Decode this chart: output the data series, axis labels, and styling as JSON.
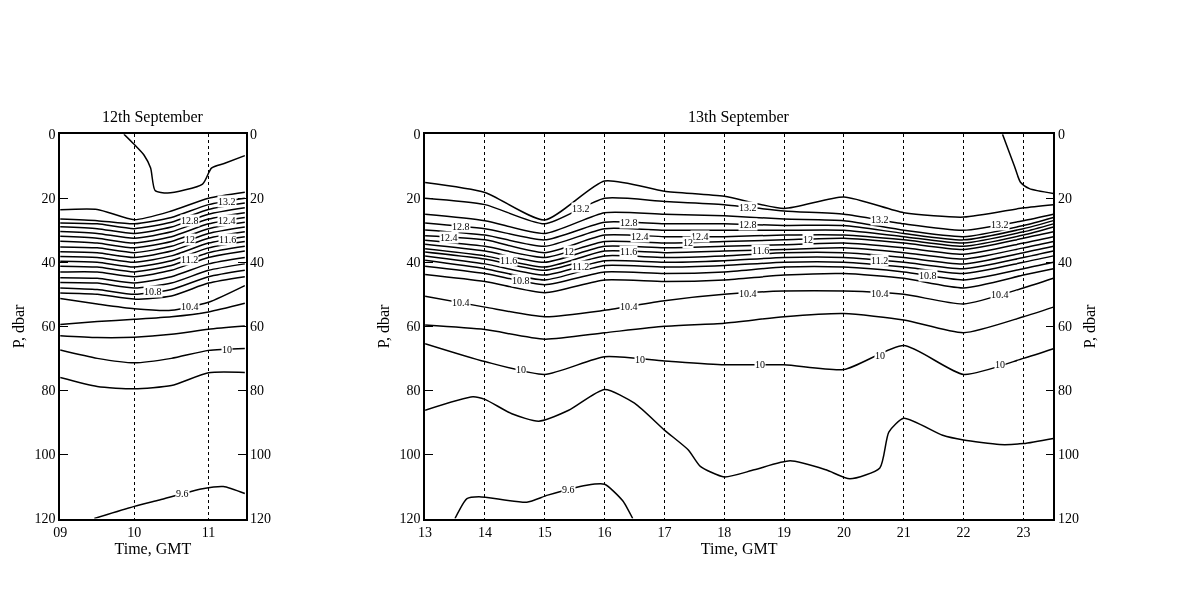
{
  "chart_data": [
    {
      "type": "line",
      "title": "12th September",
      "xlabel": "Time, GMT",
      "ylabel": "P, dbar",
      "xlim": [
        9,
        11.5
      ],
      "xticks": [
        {
          "value": 9,
          "label": "09"
        },
        10,
        11
      ],
      "ylim": [
        120,
        0
      ],
      "yticks": [
        0,
        20,
        40,
        60,
        80,
        100,
        120
      ],
      "y2lim": [
        120,
        0
      ],
      "y2ticks": [
        0,
        20,
        40,
        60,
        80,
        100,
        120
      ],
      "grid": "x",
      "marker": "none",
      "line_style": "solid",
      "series": [
        {
          "color": "#000000",
          "x": [
            9.86,
            9.99,
            10.13,
            10.22,
            10.28,
            10.45,
            10.92,
            11.04,
            11.22,
            11.49
          ],
          "values": [
            0,
            3,
            6.5,
            10.6,
            17.6,
            18.4,
            15.6,
            10.6,
            9.1,
            6.7
          ]
        },
        {
          "color": "#000000",
          "x": [
            9,
            9.5,
            10,
            10.5,
            11,
            11.49
          ],
          "values": [
            23.6,
            23.5,
            26.7,
            24,
            20,
            18.1
          ]
        },
        {
          "color": "#000000",
          "x": [
            9,
            9.5,
            10,
            10.5,
            11,
            11.49
          ],
          "values": [
            26.5,
            27,
            28,
            26,
            22,
            20
          ]
        },
        {
          "color": "#000000",
          "x": [
            9,
            9.5,
            10,
            10.5,
            11,
            11.49
          ],
          "values": [
            27.7,
            28,
            29.5,
            27.5,
            23.5,
            21.5
          ]
        },
        {
          "color": "#000000",
          "x": [
            9,
            9.5,
            10,
            10.5,
            11,
            11.49
          ],
          "values": [
            28.9,
            29.5,
            31,
            29,
            25,
            23
          ]
        },
        {
          "color": "#000000",
          "x": [
            9,
            9.5,
            10,
            10.5,
            11,
            11.49
          ],
          "values": [
            30.4,
            31,
            32.5,
            30.5,
            26.5,
            24.5
          ]
        },
        {
          "color": "#000000",
          "x": [
            9,
            9.5,
            10,
            10.5,
            11,
            11.49
          ],
          "values": [
            31.9,
            32.5,
            34,
            32,
            28,
            26
          ]
        },
        {
          "color": "#000000",
          "x": [
            9,
            9.5,
            10,
            10.5,
            11,
            11.49
          ],
          "values": [
            33.4,
            34,
            35.5,
            33.5,
            29.5,
            27.5
          ]
        },
        {
          "color": "#000000",
          "x": [
            9,
            9.5,
            10,
            10.5,
            11,
            11.49
          ],
          "values": [
            35.2,
            35.5,
            37,
            35,
            31,
            29
          ]
        },
        {
          "color": "#000000",
          "x": [
            9,
            9.5,
            10,
            10.5,
            11,
            11.49
          ],
          "values": [
            36.7,
            37,
            38.5,
            36.5,
            32.5,
            30.5
          ]
        },
        {
          "color": "#000000",
          "x": [
            9,
            9.5,
            10,
            10.5,
            11,
            11.49
          ],
          "values": [
            38.2,
            38.5,
            40,
            38,
            34,
            32
          ]
        },
        {
          "color": "#000000",
          "x": [
            9,
            9.5,
            10,
            10.5,
            11,
            11.49
          ],
          "values": [
            39.7,
            40,
            41.5,
            39.5,
            35.5,
            33.5
          ]
        },
        {
          "color": "#000000",
          "x": [
            9,
            9.5,
            10,
            10.5,
            11,
            11.49
          ],
          "values": [
            41.2,
            41.5,
            43,
            41,
            37,
            35
          ]
        },
        {
          "color": "#000000",
          "x": [
            9,
            9.5,
            10,
            10.5,
            11,
            11.49
          ],
          "values": [
            43,
            43,
            44.5,
            42.5,
            38.5,
            36.5
          ]
        },
        {
          "color": "#000000",
          "x": [
            9,
            9.5,
            10,
            10.5,
            11,
            11.49
          ],
          "values": [
            44.8,
            45,
            46.5,
            44.5,
            40.5,
            38.5
          ]
        },
        {
          "color": "#000000",
          "x": [
            9,
            9.5,
            10,
            10.5,
            11,
            11.49
          ],
          "values": [
            46.3,
            46.5,
            48,
            46.5,
            42.5,
            40.5
          ]
        },
        {
          "color": "#000000",
          "x": [
            9,
            9.5,
            10,
            10.5,
            11,
            11.49
          ],
          "values": [
            48,
            48.5,
            50,
            48.5,
            44.5,
            42.5
          ]
        },
        {
          "color": "#000000",
          "x": [
            9,
            9.5,
            10,
            10.5,
            11,
            11.49
          ],
          "values": [
            49.6,
            50,
            51.5,
            50.5,
            46.5,
            44.5
          ]
        },
        {
          "color": "#000000",
          "x": [
            9,
            9.5,
            10,
            10.5,
            11,
            11.49
          ],
          "values": [
            51.3,
            53,
            54.5,
            55,
            52.5,
            47.3
          ]
        },
        {
          "color": "#000000",
          "x": [
            9,
            9.5,
            10,
            10.5,
            11,
            11.49
          ],
          "values": [
            59.4,
            58.5,
            57.8,
            57,
            55.5,
            52.8
          ]
        },
        {
          "color": "#000000",
          "x": [
            9,
            9.5,
            10,
            10.5,
            11,
            11.49
          ],
          "values": [
            62.9,
            63.5,
            63.4,
            62.5,
            60.9,
            59.9
          ]
        },
        {
          "color": "#000000",
          "x": [
            9,
            9.5,
            10,
            10.5,
            11,
            11.49
          ],
          "values": [
            67.4,
            70,
            71.4,
            70,
            67.5,
            66.9
          ]
        },
        {
          "color": "#000000",
          "x": [
            9,
            9.5,
            10,
            10.5,
            11,
            11.49
          ],
          "values": [
            76,
            78.8,
            79.5,
            78.5,
            74.5,
            74.4
          ]
        },
        {
          "color": "#000000",
          "x": [
            9.46,
            10,
            10.34,
            10.92,
            11.2,
            11.49
          ],
          "values": [
            120,
            116.2,
            114.2,
            110.7,
            110,
            112.2
          ]
        }
      ],
      "annotations": [
        {
          "text": "13.2",
          "x": 11.25,
          "y": 21
        },
        {
          "text": "12.8",
          "x": 10.75,
          "y": 27
        },
        {
          "text": "12.4",
          "x": 11.25,
          "y": 27
        },
        {
          "text": "12",
          "x": 10.75,
          "y": 33
        },
        {
          "text": "11.6",
          "x": 11.25,
          "y": 33
        },
        {
          "text": "11.2",
          "x": 10.75,
          "y": 39
        },
        {
          "text": "10.8",
          "x": 10.25,
          "y": 49.25
        },
        {
          "text": "10.4",
          "x": 10.75,
          "y": 53.75
        },
        {
          "text": "10",
          "x": 11.25,
          "y": 67.2
        },
        {
          "text": "9.6",
          "x": 10.65,
          "y": 112.3
        }
      ]
    },
    {
      "type": "line",
      "title": "13th September",
      "xlabel": "Time, GMT",
      "ylabel": "P, dbar",
      "y2label": "P, dbar",
      "xlim": [
        13,
        23.5
      ],
      "xticks": [
        13,
        14,
        15,
        16,
        17,
        18,
        19,
        20,
        21,
        22,
        23
      ],
      "ylim": [
        120,
        0
      ],
      "yticks": [
        0,
        20,
        40,
        60,
        80,
        100,
        120
      ],
      "y2lim": [
        120,
        0
      ],
      "y2ticks": [
        0,
        20,
        40,
        60,
        80,
        100,
        120
      ],
      "grid": "x",
      "marker": "none",
      "line_style": "solid",
      "series": [
        {
          "color": "#000000",
          "x": [
            22.65,
            22.75,
            22.85,
            22.95,
            23.1,
            23.5
          ],
          "values": [
            0,
            5,
            10,
            15,
            17,
            18.5
          ]
        },
        {
          "color": "#000000",
          "x": [
            13,
            14,
            15,
            16,
            17,
            18,
            19,
            20,
            21,
            22,
            23,
            23.5
          ],
          "values": [
            15.1,
            18.2,
            26.8,
            14.6,
            17.8,
            19.4,
            23.2,
            19.6,
            24.5,
            25.9,
            23,
            22
          ]
        },
        {
          "color": "#000000",
          "x": [
            13,
            14,
            15,
            16,
            17,
            18,
            19,
            20,
            21,
            22,
            23,
            23.5
          ],
          "values": [
            20,
            22,
            28,
            20,
            21,
            22,
            24,
            25,
            28,
            30,
            27,
            25
          ]
        },
        {
          "color": "#000000",
          "x": [
            13,
            14,
            15,
            16,
            17,
            18,
            19,
            20,
            21,
            22,
            23,
            23.5
          ],
          "values": [
            25,
            27,
            31,
            24.5,
            25,
            25.5,
            26.5,
            27,
            30,
            32,
            28.5,
            26
          ]
        },
        {
          "color": "#000000",
          "x": [
            13,
            14,
            15,
            16,
            17,
            18,
            19,
            20,
            21,
            22,
            23,
            23.5
          ],
          "values": [
            27.7,
            29.5,
            33,
            27.5,
            28,
            28,
            28.5,
            28.5,
            31,
            33,
            29.5,
            27
          ]
        },
        {
          "color": "#000000",
          "x": [
            13,
            14,
            15,
            16,
            17,
            18,
            19,
            20,
            21,
            22,
            23,
            23.5
          ],
          "values": [
            29.9,
            31.5,
            35,
            29.5,
            30,
            30,
            30,
            30,
            32,
            34,
            30.5,
            28
          ]
        },
        {
          "color": "#000000",
          "x": [
            13,
            14,
            15,
            16,
            17,
            18,
            19,
            20,
            21,
            22,
            23,
            23.5
          ],
          "values": [
            31.7,
            33,
            37,
            31.5,
            32,
            32,
            31.5,
            31.5,
            33,
            35,
            31.5,
            29
          ]
        },
        {
          "color": "#000000",
          "x": [
            13,
            14,
            15,
            16,
            17,
            18,
            19,
            20,
            21,
            22,
            23,
            23.5
          ],
          "values": [
            33.1,
            35,
            38.5,
            33.5,
            34,
            33.5,
            33,
            32.5,
            34,
            36,
            32.5,
            30.5
          ]
        },
        {
          "color": "#000000",
          "x": [
            13,
            14,
            15,
            16,
            17,
            18,
            19,
            20,
            21,
            22,
            23,
            23.5
          ],
          "values": [
            34.4,
            36.5,
            40,
            35,
            35.5,
            35,
            34.5,
            34,
            35.5,
            37.5,
            34,
            32
          ]
        },
        {
          "color": "#000000",
          "x": [
            13,
            14,
            15,
            16,
            17,
            18,
            19,
            20,
            21,
            22,
            23,
            23.5
          ],
          "values": [
            35.8,
            38,
            41.5,
            36.5,
            37,
            36.5,
            36,
            35.5,
            37,
            39,
            35.5,
            33.5
          ]
        },
        {
          "color": "#000000",
          "x": [
            13,
            14,
            15,
            16,
            17,
            18,
            19,
            20,
            21,
            22,
            23,
            23.5
          ],
          "values": [
            36.8,
            39,
            42.5,
            38,
            38.5,
            38,
            37,
            37,
            38.5,
            40.5,
            37,
            35
          ]
        },
        {
          "color": "#000000",
          "x": [
            13,
            14,
            15,
            16,
            17,
            18,
            19,
            20,
            21,
            22,
            23,
            23.5
          ],
          "values": [
            38,
            40.5,
            44,
            39.5,
            40,
            39.5,
            38.5,
            38.5,
            40,
            42,
            38.5,
            36.5
          ]
        },
        {
          "color": "#000000",
          "x": [
            13,
            14,
            15,
            16,
            17,
            18,
            19,
            20,
            21,
            22,
            23,
            23.5
          ],
          "values": [
            39.4,
            42,
            45.5,
            41,
            41.5,
            41,
            40,
            40,
            41.5,
            43.5,
            40,
            38
          ]
        },
        {
          "color": "#000000",
          "x": [
            13,
            14,
            15,
            16,
            17,
            18,
            19,
            20,
            21,
            22,
            23,
            23.5
          ],
          "values": [
            41.2,
            43.5,
            47,
            43,
            43.5,
            43,
            41.5,
            41.5,
            43,
            45.5,
            42,
            40
          ]
        },
        {
          "color": "#000000",
          "x": [
            13,
            14,
            15,
            16,
            17,
            18,
            19,
            20,
            21,
            22,
            23,
            23.5
          ],
          "values": [
            43.8,
            46,
            49.5,
            45.5,
            46,
            45.5,
            44,
            43.5,
            45,
            48,
            44,
            42
          ]
        },
        {
          "color": "#000000",
          "x": [
            13,
            14,
            15,
            16,
            17,
            18,
            19,
            20,
            21,
            22,
            23,
            23.5
          ],
          "values": [
            50.6,
            54,
            57,
            55,
            52,
            50,
            49,
            49,
            50,
            53,
            48,
            45
          ]
        },
        {
          "color": "#000000",
          "x": [
            13,
            14,
            15,
            16,
            17,
            18,
            19,
            20,
            21,
            22,
            23,
            23.5
          ],
          "values": [
            59.6,
            61,
            64,
            62,
            60,
            59,
            57,
            56,
            58,
            62,
            57,
            54
          ]
        },
        {
          "color": "#000000",
          "x": [
            13,
            14,
            15,
            16,
            17,
            18,
            19,
            20,
            21,
            22,
            23,
            23.5
          ],
          "values": [
            65.4,
            71,
            75,
            69.5,
            70.8,
            72,
            72,
            73.5,
            66,
            75,
            70,
            67
          ]
        },
        {
          "color": "#000000",
          "x": [
            13,
            13.8,
            14,
            14.45,
            14.9,
            15.4,
            16,
            16.5,
            17,
            17.4,
            17.6,
            18,
            18.5,
            19.1,
            19.7,
            20.1,
            20.6,
            20.75,
            21,
            21.65,
            22,
            22.6,
            23,
            23.5
          ],
          "values": [
            86.2,
            82,
            82.8,
            87.3,
            89.6,
            86.2,
            79.7,
            84,
            92.4,
            98.6,
            103.7,
            107,
            104.8,
            102,
            104.8,
            107.6,
            104.2,
            93,
            88.7,
            94,
            95.5,
            96.9,
            96.6,
            95
          ]
        },
        {
          "color": "#000000",
          "x": [
            13.5,
            13.7,
            13.9,
            14.7,
            15.05,
            15.7,
            16,
            16.3,
            16.47
          ],
          "values": [
            120,
            113.8,
            113.2,
            114.9,
            112.7,
            109.6,
            109.3,
            114.4,
            120
          ]
        }
      ],
      "annotations": [
        {
          "text": "13.2",
          "x": 15.6,
          "y": 23.2
        },
        {
          "text": "13.2",
          "x": 18.4,
          "y": 22.8
        },
        {
          "text": "13.2",
          "x": 20.6,
          "y": 26.8
        },
        {
          "text": "13.2",
          "x": 22.6,
          "y": 28.2
        },
        {
          "text": "12.8",
          "x": 13.6,
          "y": 28.8
        },
        {
          "text": "12.8",
          "x": 16.4,
          "y": 27.7
        },
        {
          "text": "12.8",
          "x": 18.4,
          "y": 28.2
        },
        {
          "text": "12.4",
          "x": 13.4,
          "y": 32.2
        },
        {
          "text": "12.4",
          "x": 16.6,
          "y": 31.8
        },
        {
          "text": "12.4",
          "x": 17.6,
          "y": 32
        },
        {
          "text": "12",
          "x": 15.4,
          "y": 36.5
        },
        {
          "text": "12",
          "x": 17.4,
          "y": 33.8
        },
        {
          "text": "12",
          "x": 19.4,
          "y": 32.8
        },
        {
          "text": "11.6",
          "x": 14.4,
          "y": 39.4
        },
        {
          "text": "11.6",
          "x": 16.4,
          "y": 36.7
        },
        {
          "text": "11.6",
          "x": 18.6,
          "y": 36.2
        },
        {
          "text": "11.2",
          "x": 15.6,
          "y": 41.3
        },
        {
          "text": "11.2",
          "x": 20.6,
          "y": 39.4
        },
        {
          "text": "10.8",
          "x": 14.6,
          "y": 45.6
        },
        {
          "text": "10.8",
          "x": 21.4,
          "y": 44
        },
        {
          "text": "10.4",
          "x": 13.6,
          "y": 52.6
        },
        {
          "text": "10.4",
          "x": 16.4,
          "y": 53.8
        },
        {
          "text": "10.4",
          "x": 18.4,
          "y": 49.6
        },
        {
          "text": "10.4",
          "x": 20.6,
          "y": 49.6
        },
        {
          "text": "10.4",
          "x": 22.6,
          "y": 50
        },
        {
          "text": "10",
          "x": 14.6,
          "y": 73.4
        },
        {
          "text": "10",
          "x": 16.6,
          "y": 70.3
        },
        {
          "text": "10",
          "x": 18.6,
          "y": 72
        },
        {
          "text": "10",
          "x": 20.6,
          "y": 69
        },
        {
          "text": "10",
          "x": 22.6,
          "y": 72
        },
        {
          "text": "9.6",
          "x": 15.4,
          "y": 111
        }
      ]
    }
  ]
}
